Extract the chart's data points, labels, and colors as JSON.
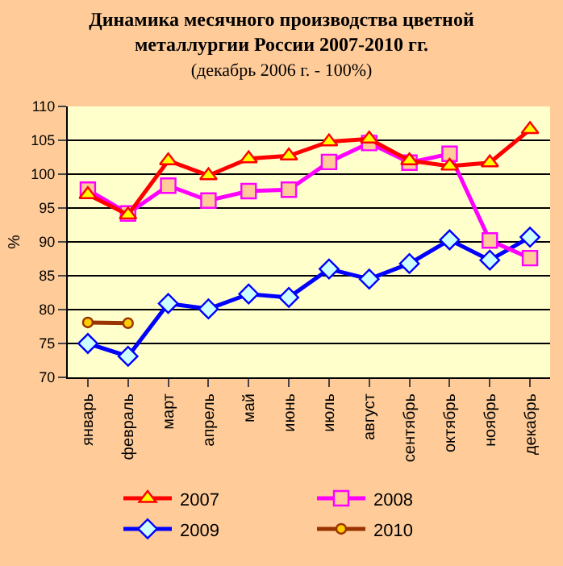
{
  "chart_data": {
    "type": "line",
    "title": "Динамика месячного производства цветной металлургии России 2007-2010 гг.",
    "subtitle": "(декабрь 2006 г. - 100%)",
    "ylabel": "%",
    "categories": [
      "январь",
      "февраль",
      "март",
      "апрель",
      "май",
      "июнь",
      "июль",
      "август",
      "сентябрь",
      "октябрь",
      "ноябрь",
      "декабрь"
    ],
    "series": [
      {
        "name": "2007",
        "color": "#ff0000",
        "marker": "triangle",
        "values": [
          97,
          94,
          102,
          99.8,
          102.3,
          102.7,
          104.8,
          105.2,
          102,
          101.2,
          101.7,
          106.6
        ]
      },
      {
        "name": "2008",
        "color": "#ff00ff",
        "marker": "square",
        "values": [
          97.7,
          94.2,
          98.3,
          96.1,
          97.5,
          97.7,
          101.8,
          104.6,
          101.7,
          103,
          90.2,
          87.6
        ]
      },
      {
        "name": "2009",
        "color": "#0000ff",
        "marker": "diamond",
        "values": [
          75,
          73.1,
          80.9,
          80.1,
          82.3,
          81.8,
          86,
          84.5,
          86.8,
          90.3,
          87.3,
          90.7
        ]
      },
      {
        "name": "2010",
        "color": "#993300",
        "marker": "circle",
        "values": [
          78.1,
          78,
          null,
          null,
          null,
          null,
          null,
          null,
          null,
          null,
          null,
          null
        ]
      }
    ],
    "ylim": [
      70,
      110
    ],
    "yticks": [
      70,
      75,
      80,
      85,
      90,
      95,
      100,
      105,
      110
    ],
    "grid": "y",
    "legend": "bottom"
  }
}
